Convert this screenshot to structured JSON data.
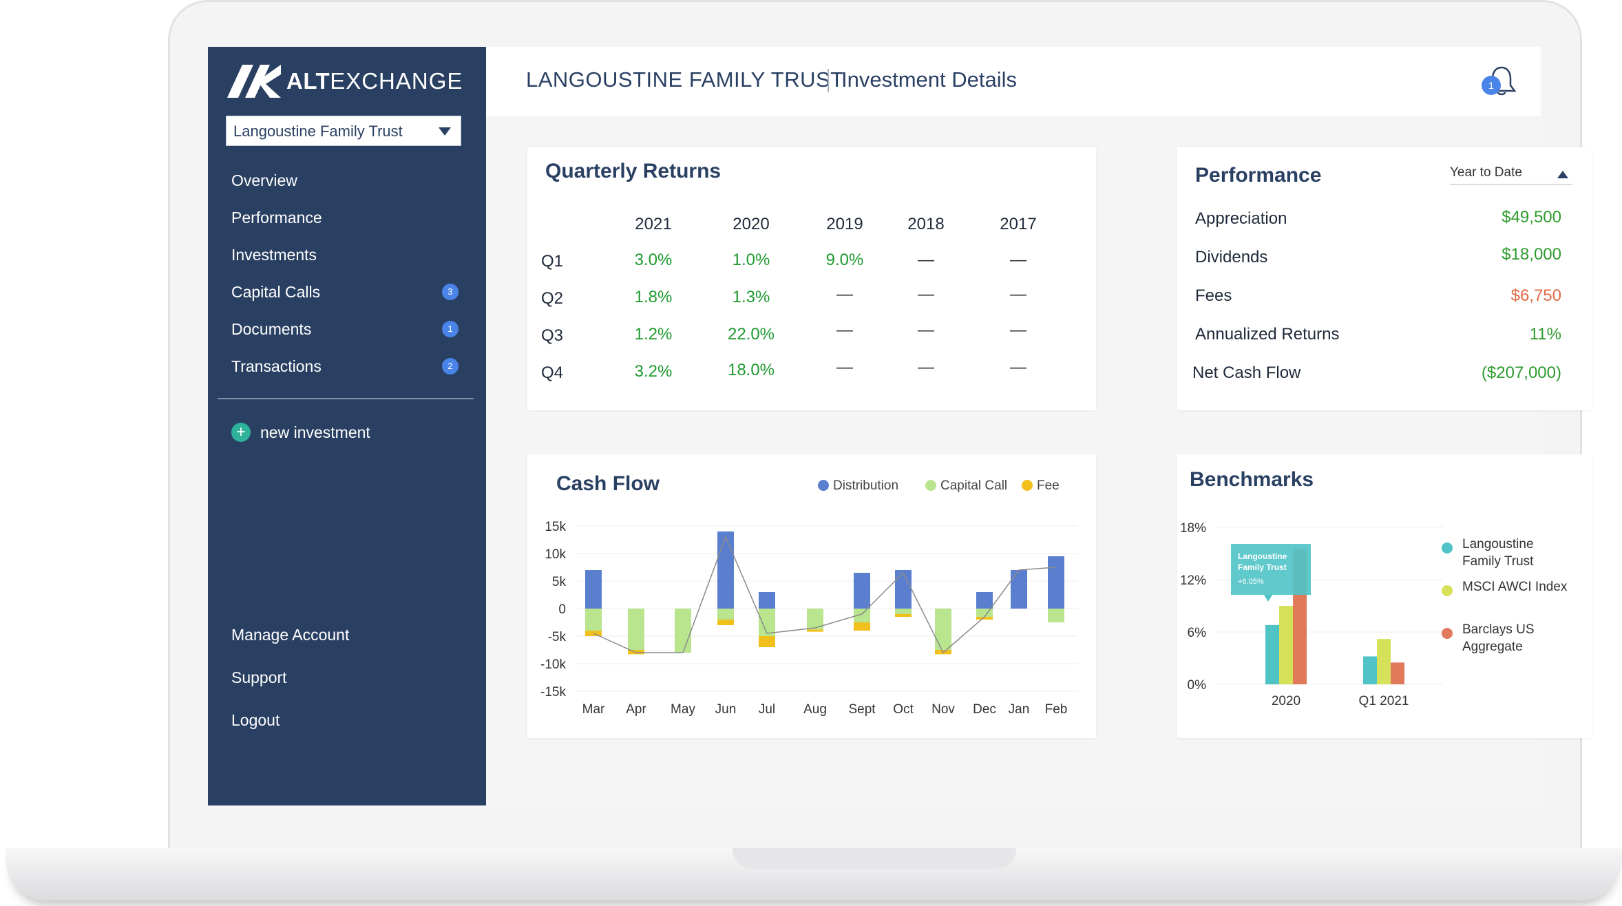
{
  "brand": {
    "alt": "ALT",
    "exchange": "EXCHANGE"
  },
  "account_select": "Langoustine Family Trust",
  "nav": [
    {
      "label": "Overview"
    },
    {
      "label": "Performance"
    },
    {
      "label": "Investments"
    },
    {
      "label": "Capital Calls",
      "badge": "3"
    },
    {
      "label": "Documents",
      "badge": "1"
    },
    {
      "label": "Transactions",
      "badge": "2"
    }
  ],
  "new_investment": "new investment",
  "bottom_nav": [
    "Manage Account",
    "Support",
    "Logout"
  ],
  "header": {
    "trust": "LANGOUSTINE FAMILY TRUST",
    "page": "Investment Details",
    "notification_count": "1"
  },
  "quarterly_returns": {
    "title": "Quarterly Returns",
    "years": [
      "2021",
      "2020",
      "2019",
      "2018",
      "2017"
    ],
    "rows": [
      {
        "quarter": "Q1",
        "values": [
          "3.0%",
          "1.0%",
          "9.0%",
          "—",
          "—"
        ]
      },
      {
        "quarter": "Q2",
        "values": [
          "1.8%",
          "1.3%",
          "—",
          "—",
          "—"
        ]
      },
      {
        "quarter": "Q3",
        "values": [
          "1.2%",
          "22.0%",
          "—",
          "—",
          "—"
        ]
      },
      {
        "quarter": "Q4",
        "values": [
          "3.2%",
          "18.0%",
          "—",
          "—",
          "—"
        ]
      }
    ]
  },
  "performance": {
    "title": "Performance",
    "period": "Year to Date",
    "rows": [
      {
        "label": "Appreciation",
        "value": "$49,500"
      },
      {
        "label": "Dividends",
        "value": "$18,000"
      },
      {
        "label": "Fees",
        "value": "$6,750"
      },
      {
        "label": "Annualized Returns",
        "value": "11%"
      },
      {
        "label": "Net Cash Flow",
        "value": "($207,000)"
      }
    ],
    "colors": {
      "positive": "#2e9a2e",
      "negative": "#e06a47"
    }
  },
  "chart_data": [
    {
      "type": "bar",
      "title": "Cash Flow",
      "categories": [
        "Mar",
        "Apr",
        "May",
        "Jun",
        "Jul",
        "Aug",
        "Sept",
        "Oct",
        "Nov",
        "Dec",
        "Jan",
        "Feb"
      ],
      "series": [
        {
          "name": "Distribution",
          "color": "#5b7fcf",
          "values": [
            7000,
            0,
            0,
            14000,
            3000,
            0,
            6500,
            7000,
            0,
            3000,
            7000,
            9500
          ]
        },
        {
          "name": "Capital Call",
          "color": "#b8e58e",
          "values": [
            -4000,
            -7500,
            -8000,
            -2000,
            -5000,
            -3800,
            -2500,
            -1000,
            -7500,
            -1500,
            0,
            -2500
          ]
        },
        {
          "name": "Fee",
          "color": "#f2c01c",
          "values": [
            -1000,
            -800,
            0,
            -1000,
            -2000,
            -400,
            -1500,
            -500,
            -800,
            -500,
            0,
            0
          ]
        }
      ],
      "line": [
        -4500,
        -8000,
        -8000,
        13000,
        -4500,
        -3500,
        -1000,
        6500,
        -8000,
        -1500,
        7000,
        7500
      ],
      "yticks": [
        "15k",
        "10k",
        "5k",
        "0",
        "-5k",
        "-10k",
        "-15k"
      ],
      "ylim": [
        -15000,
        15000
      ],
      "legend": "top-right"
    },
    {
      "type": "bar",
      "title": "Benchmarks",
      "categories": [
        "2020",
        "Q1 2021"
      ],
      "series": [
        {
          "name": "Langoustine Family Trust",
          "color": "#4fc3c6",
          "values": [
            6.8,
            3.2
          ]
        },
        {
          "name": "MSCI AWCI Index",
          "color": "#d6e15a",
          "values": [
            9.0,
            5.2
          ]
        },
        {
          "name": "Barclays US Aggregate",
          "color": "#e07a5b",
          "values": [
            15.5,
            2.5
          ]
        }
      ],
      "yticks": [
        "18%",
        "12%",
        "6%",
        "0%"
      ],
      "ylim": [
        0,
        18
      ],
      "tooltip": {
        "title": "Langoustine Family Trust",
        "value": "+6.05%"
      },
      "legend": "right"
    }
  ]
}
